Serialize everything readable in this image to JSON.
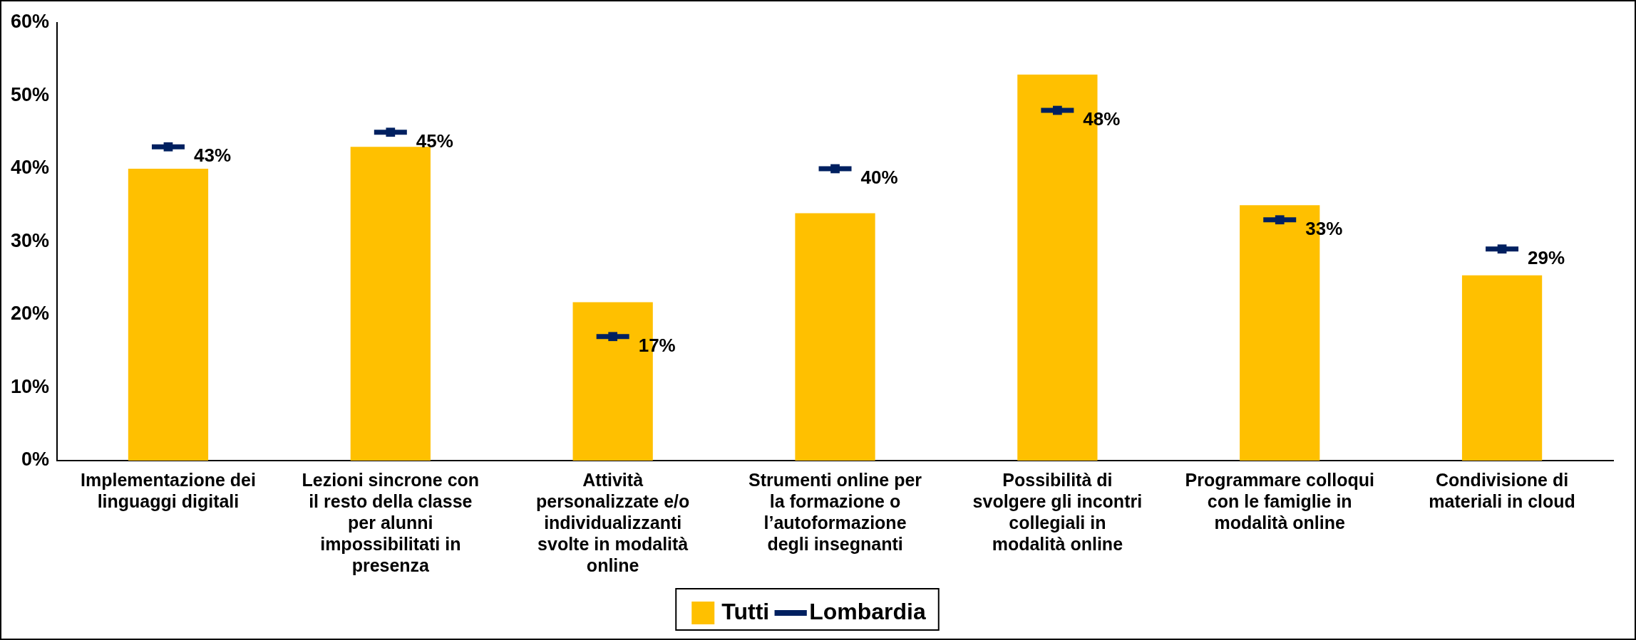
{
  "chart_data": {
    "type": "bar",
    "categories": [
      "Implementazione dei linguaggi digitali",
      "Lezioni sincrone con il resto della classe per alunni impossibilitati in presenza",
      "Attività personalizzate e/o individualizzanti svolte in modalità online",
      "Strumenti online per la formazione o l’autoformazione degli insegnanti",
      "Possibilità di svolgere gli incontri collegiali in modalità online",
      "Programmare colloqui con le famiglie in modalità online",
      "Condivisione di materiali in cloud"
    ],
    "series": [
      {
        "name": "Tutti",
        "color": "#ffc000",
        "values": [
          40,
          43,
          21.7,
          33.9,
          52.9,
          35,
          25.4
        ]
      },
      {
        "name": "Lombardia",
        "type": "scatter",
        "marker": "square",
        "color": "#002060",
        "x": [
          "Implementazione dei linguaggi digitali",
          "Lezioni sincrone con il resto della classe per alunni impossibilitati in presenza",
          "Attività personalizzate e/o individualizzanti svolte in modalità online",
          "Strumenti online per la formazione o l’autoformazione degli insegnanti",
          "Possibilità di svolgere gli incontri collegiali in modalità online",
          "Programmare colloqui con le famiglie in modalità online",
          "Condivisione di materiali in cloud"
        ],
        "values": [
          43,
          45,
          17,
          40,
          48,
          33,
          29
        ],
        "value_labels": [
          "43%",
          "45%",
          "17%",
          "40%",
          "48%",
          "33%",
          "29%"
        ]
      }
    ],
    "ylim": [
      0,
      60
    ],
    "yticks": [
      {
        "value": 0,
        "label": "0%"
      },
      {
        "value": 10,
        "label": "10%"
      },
      {
        "value": 20,
        "label": "20%"
      },
      {
        "value": 30,
        "label": "30%"
      },
      {
        "value": 40,
        "label": "40%"
      },
      {
        "value": 50,
        "label": "50%"
      },
      {
        "value": 60,
        "label": "60%"
      }
    ],
    "legend": "bottom"
  }
}
